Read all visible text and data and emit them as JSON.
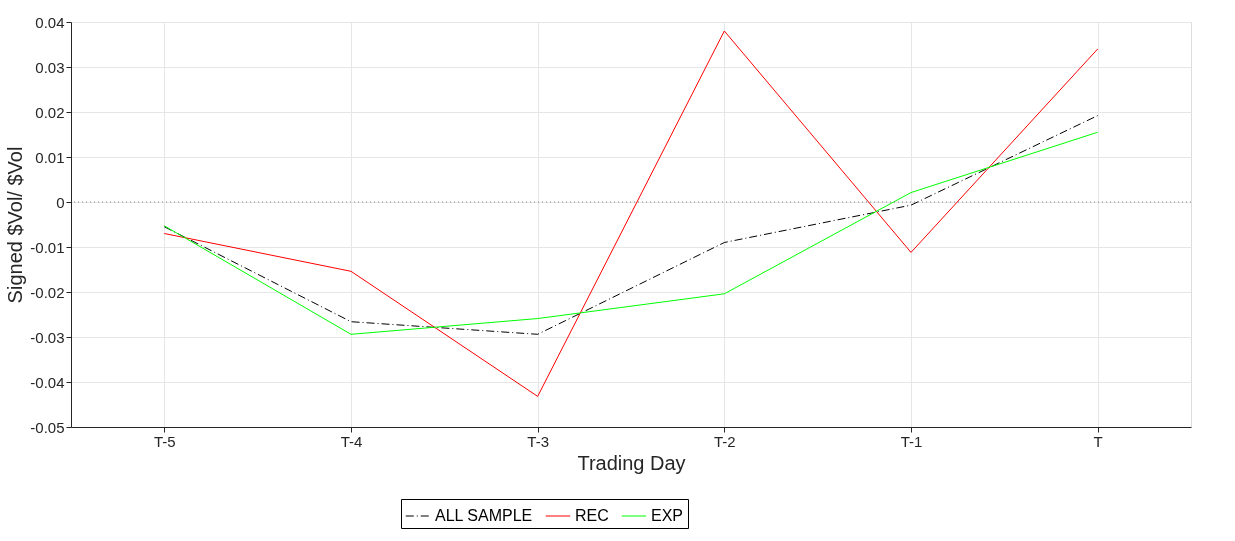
{
  "chart_data": {
    "type": "line",
    "xlabel": "Trading Day",
    "ylabel": "Signed $Vol/ $Vol",
    "categories": [
      "T-5",
      "T-4",
      "T-3",
      "T-2",
      "T-1",
      "T"
    ],
    "series": [
      {
        "name": "ALL SAMPLE",
        "color": "#000000",
        "line_style": "dashdot",
        "values": [
          -0.0055,
          -0.0266,
          -0.0294,
          -0.009,
          -0.0007,
          0.0192
        ]
      },
      {
        "name": "REC",
        "color": "#ff0000",
        "line_style": "solid",
        "values": [
          -0.007,
          -0.0154,
          -0.0432,
          0.038,
          -0.0112,
          0.034
        ]
      },
      {
        "name": "EXP",
        "color": "#00ff00",
        "line_style": "solid",
        "values": [
          -0.0053,
          -0.0294,
          -0.0259,
          -0.0204,
          0.0021,
          0.0155
        ]
      }
    ],
    "ylim": [
      -0.05,
      0.04
    ],
    "yticks": [
      -0.05,
      -0.04,
      -0.03,
      -0.02,
      -0.01,
      0,
      0.01,
      0.02,
      0.03,
      0.04
    ],
    "ref_lines": [
      {
        "axis": "y",
        "value": 0,
        "color": "#808080",
        "line_style": "dotted"
      }
    ],
    "grid": true,
    "legend": "bottom",
    "marker": "none"
  }
}
